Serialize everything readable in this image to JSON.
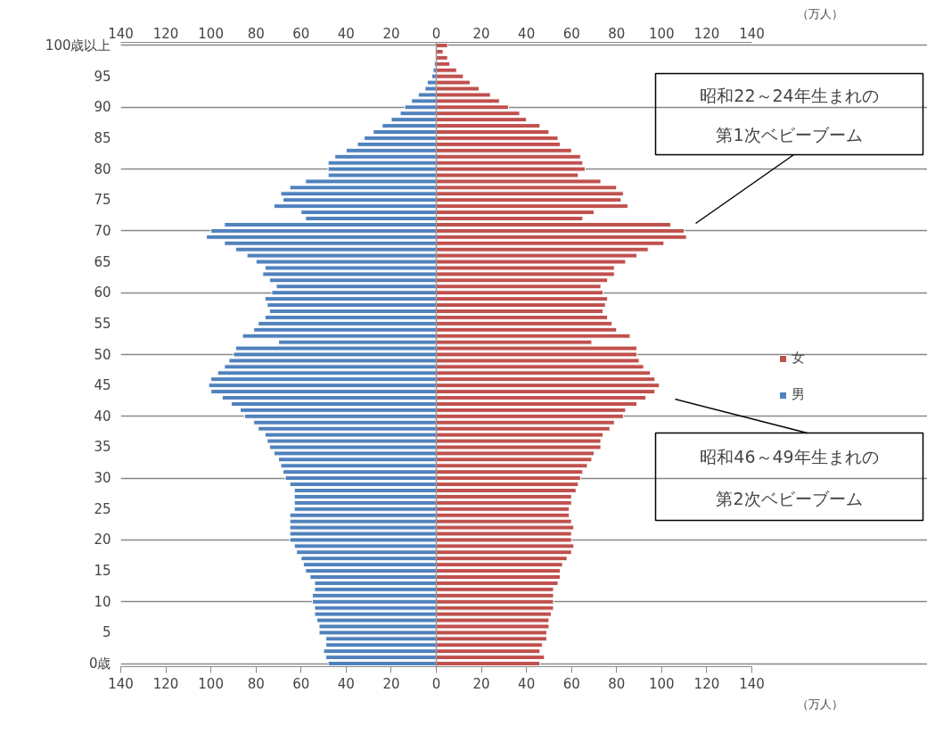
{
  "chart_data": {
    "type": "bar",
    "orientation": "horizontal",
    "xlabel": "（万人）",
    "x2label": "（万人）",
    "categories": [
      "100歳以上",
      null,
      null,
      null,
      null,
      "95",
      null,
      null,
      null,
      null,
      "90",
      null,
      null,
      null,
      null,
      "85",
      null,
      null,
      null,
      null,
      "80",
      null,
      null,
      null,
      null,
      "75",
      null,
      null,
      null,
      null,
      "70",
      null,
      null,
      null,
      null,
      "65",
      null,
      null,
      null,
      null,
      "60",
      null,
      null,
      null,
      null,
      "55",
      null,
      null,
      null,
      null,
      "50",
      null,
      null,
      null,
      null,
      "45",
      null,
      null,
      null,
      null,
      "40",
      null,
      null,
      null,
      null,
      "35",
      null,
      null,
      null,
      null,
      "30",
      null,
      null,
      null,
      null,
      "25",
      null,
      null,
      null,
      null,
      "20",
      null,
      null,
      null,
      null,
      "15",
      null,
      null,
      null,
      null,
      "10",
      null,
      null,
      null,
      null,
      "5",
      null,
      null,
      null,
      null,
      "0歳"
    ],
    "series": [
      {
        "name": "女",
        "color": "#c0504d",
        "values": [
          5,
          3,
          5,
          6,
          9,
          12,
          15,
          19,
          24,
          28,
          32,
          37,
          40,
          46,
          50,
          54,
          55,
          60,
          64,
          65,
          66,
          63,
          73,
          80,
          83,
          82,
          85,
          70,
          65,
          104,
          110,
          111,
          101,
          94,
          89,
          84,
          79,
          79,
          76,
          73,
          74,
          76,
          75,
          74,
          76,
          78,
          80,
          86,
          69,
          89,
          89,
          90,
          92,
          95,
          97,
          99,
          97,
          93,
          89,
          84,
          83,
          79,
          77,
          74,
          73,
          73,
          70,
          69,
          67,
          65,
          64,
          63,
          62,
          60,
          60,
          59,
          59,
          60,
          61,
          60,
          60,
          61,
          60,
          58,
          56,
          55,
          55,
          54,
          52,
          52,
          52,
          52,
          51,
          50,
          50,
          49,
          49,
          47,
          46,
          48,
          46
        ]
      },
      {
        "name": "男",
        "color": "#4f81bd",
        "values": [
          null,
          -0.3,
          null,
          -0.9,
          -1.4,
          -2,
          -4,
          -5,
          -8,
          -11,
          -14,
          -16,
          -20,
          -24,
          -28,
          -32,
          -35,
          -40,
          -45,
          -48,
          -48,
          -48,
          -58,
          -65,
          -69,
          -68,
          -72,
          -60,
          -58,
          -94,
          -100,
          -102,
          -94,
          -89,
          -84,
          -80,
          -76,
          -77,
          -74,
          -71,
          -73,
          -76,
          -75,
          -74,
          -76,
          -79,
          -81,
          -86,
          -70,
          -89,
          -90,
          -92,
          -94,
          -97,
          -100,
          -101,
          -100,
          -95,
          -91,
          -87,
          -85,
          -81,
          -79,
          -76,
          -75,
          -74,
          -72,
          -70,
          -69,
          -68,
          -67,
          -65,
          -63,
          -63,
          -63,
          -63,
          -65,
          -65,
          -65,
          -65,
          -65,
          -63,
          -62,
          -60,
          -59,
          -58,
          -56,
          -54,
          -54,
          -55,
          -55,
          -54,
          -54,
          -53,
          -52,
          -52,
          -49,
          -49,
          -50,
          -49,
          -48
        ]
      }
    ],
    "stacked": true,
    "xlim": [
      -140,
      140
    ],
    "xticks": [
      {
        "value": -140,
        "label": "140"
      },
      {
        "value": -120,
        "label": "120"
      },
      {
        "value": -100,
        "label": "100"
      },
      {
        "value": -80,
        "label": "80"
      },
      {
        "value": -60,
        "label": "60"
      },
      {
        "value": -40,
        "label": "40"
      },
      {
        "value": -20,
        "label": "20"
      },
      0,
      20,
      40,
      60,
      80,
      100,
      120,
      140
    ],
    "x2lim": [
      -140,
      140
    ],
    "x2ticks": [
      {
        "value": -140,
        "label": "140"
      },
      {
        "value": -120,
        "label": "120"
      },
      {
        "value": -100,
        "label": "100"
      },
      {
        "value": -80,
        "label": "80"
      },
      {
        "value": -60,
        "label": "60"
      },
      {
        "value": -40,
        "label": "40"
      },
      {
        "value": -20,
        "label": "20"
      },
      0,
      20,
      40,
      60,
      80,
      100,
      120,
      140
    ],
    "grid": "y",
    "legend": "right",
    "annotations": [
      "昭和22～24年生まれの",
      "第1次ベビーブーム",
      "昭和46～49年生まれの",
      "第2次ベビーブーム"
    ]
  }
}
